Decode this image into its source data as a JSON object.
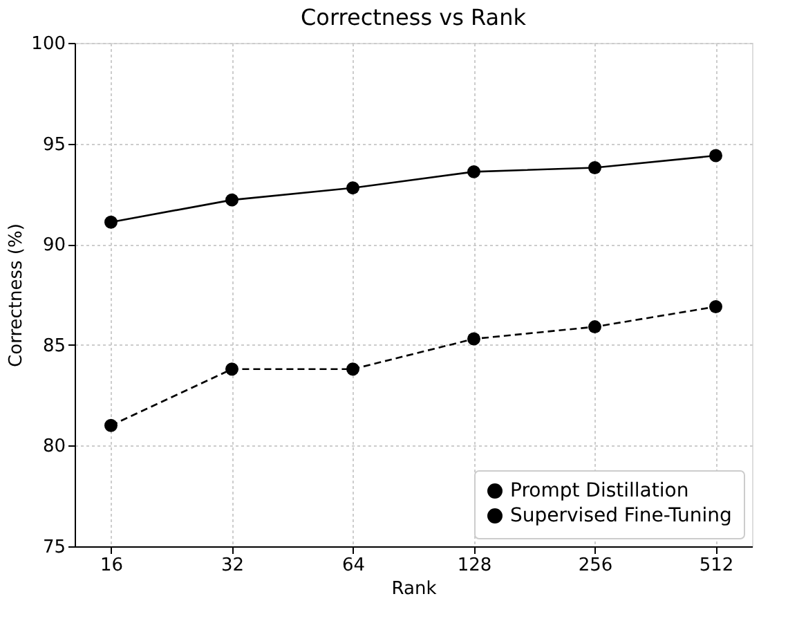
{
  "chart_data": {
    "type": "line",
    "title": "Correctness vs Rank",
    "xlabel": "Rank",
    "ylabel": "Correctness (%)",
    "categories": [
      "16",
      "32",
      "64",
      "128",
      "256",
      "512"
    ],
    "series": [
      {
        "name": "Prompt Distillation",
        "color": "#000000",
        "line_style": "solid",
        "values": [
          91.1,
          92.2,
          92.8,
          93.6,
          93.8,
          94.4
        ]
      },
      {
        "name": "Supervised Fine-Tuning",
        "color": "#000000",
        "line_style": "dashed",
        "values": [
          81.0,
          83.8,
          83.8,
          85.3,
          85.9,
          86.9
        ]
      }
    ],
    "ylim": [
      75,
      100
    ],
    "yticks": [
      75,
      80,
      85,
      90,
      95,
      100
    ],
    "grid": true,
    "legend": "bottom right",
    "marker": "circle"
  }
}
